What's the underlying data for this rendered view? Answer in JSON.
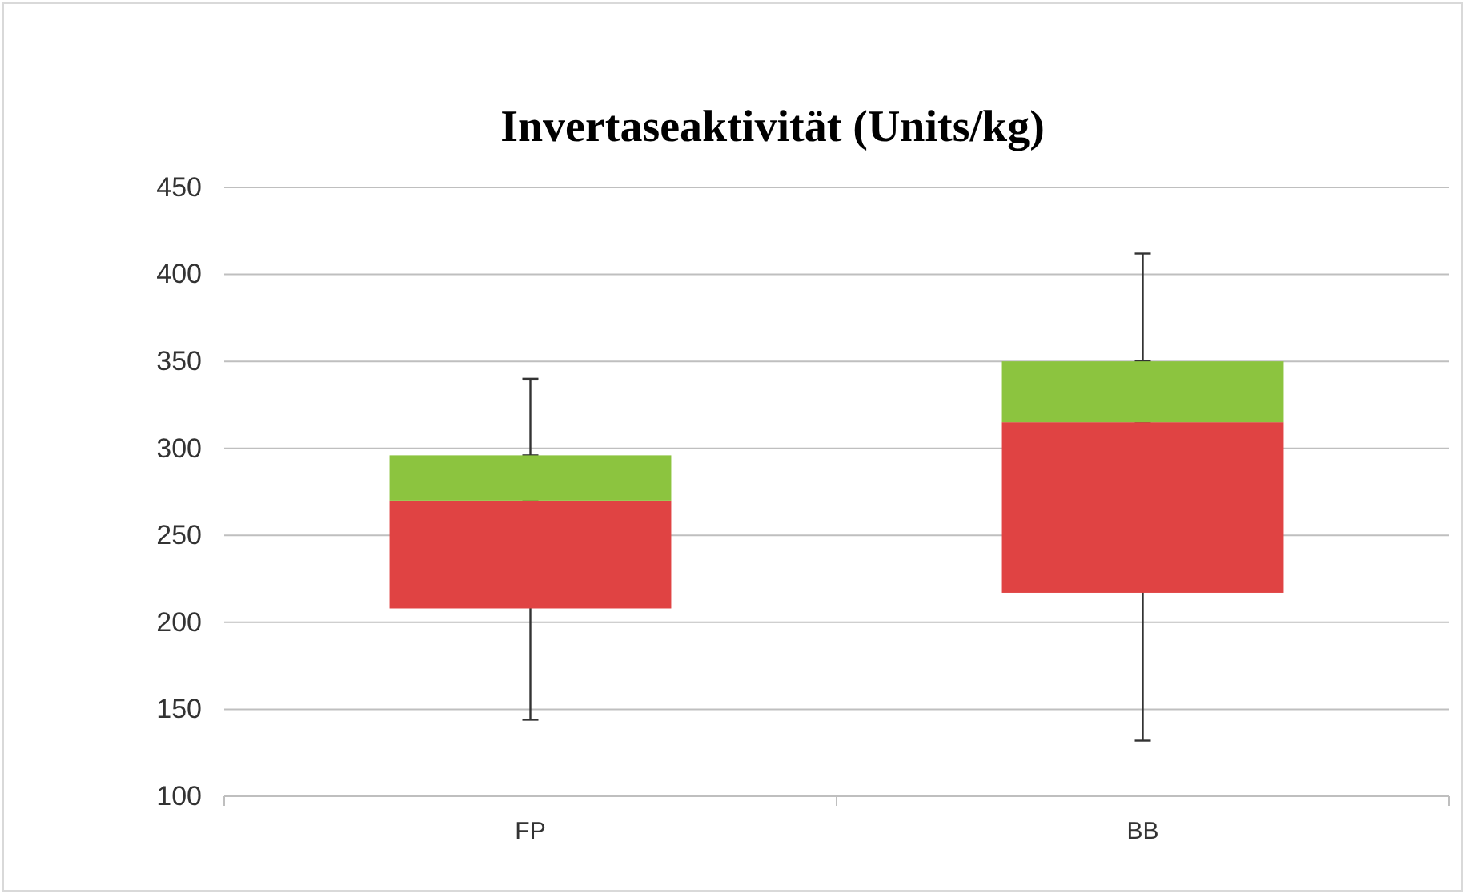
{
  "chart_data": {
    "type": "bar",
    "title": "Invertaseaktivität (Units/kg)",
    "categories": [
      "FP",
      "BB"
    ],
    "series": [
      {
        "color": "#e04343",
        "base": [
          208,
          217
        ],
        "values": [
          62,
          98
        ],
        "errors": [
          [
            144,
            270
          ],
          [
            132,
            315
          ]
        ]
      },
      {
        "color": "#8cc43f",
        "base": [
          270,
          315
        ],
        "values": [
          26,
          35
        ],
        "errors": [
          [
            296,
            340
          ],
          [
            350,
            412
          ]
        ]
      }
    ],
    "ylim": [
      100,
      450
    ],
    "yticks": [
      100,
      150,
      200,
      250,
      300,
      350,
      400,
      450
    ],
    "grid": "y"
  }
}
